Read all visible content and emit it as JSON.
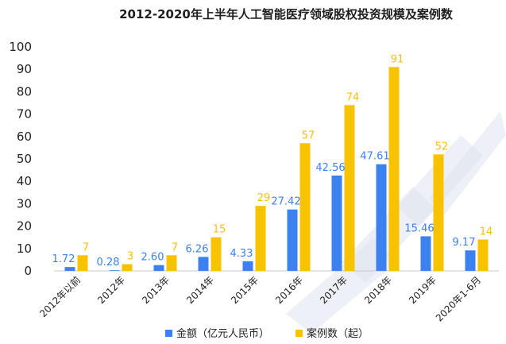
{
  "chart_data": {
    "type": "bar",
    "title": "2012-2020年上半年人工智能医疗领域股权投资规模及案例数",
    "categories": [
      "2012年以前",
      "2012年",
      "2013年",
      "2014年",
      "2015年",
      "2016年",
      "2017年",
      "2018年",
      "2019年",
      "2020年1-6月"
    ],
    "series": [
      {
        "name": "金额（亿元人民币）",
        "values": [
          1.72,
          0.28,
          2.6,
          6.26,
          4.33,
          27.42,
          42.56,
          47.61,
          15.46,
          9.17
        ],
        "labels": [
          "1.72",
          "0.28",
          "2.60",
          "6.26",
          "4.33",
          "27.42",
          "42.56",
          "47.61",
          "15.46",
          "9.17"
        ],
        "color": "#3b82f0"
      },
      {
        "name": "案例数（起）",
        "values": [
          7,
          3,
          7,
          15,
          29,
          57,
          74,
          91,
          52,
          14
        ],
        "labels": [
          "7",
          "3",
          "7",
          "15",
          "29",
          "57",
          "74",
          "91",
          "52",
          "14"
        ],
        "color": "#f8c200"
      }
    ],
    "ylim": [
      0,
      100
    ],
    "yticks": [
      0,
      10,
      20,
      30,
      40,
      50,
      60,
      70,
      80,
      90,
      100
    ],
    "grid": false,
    "legend": "bottom-center"
  }
}
